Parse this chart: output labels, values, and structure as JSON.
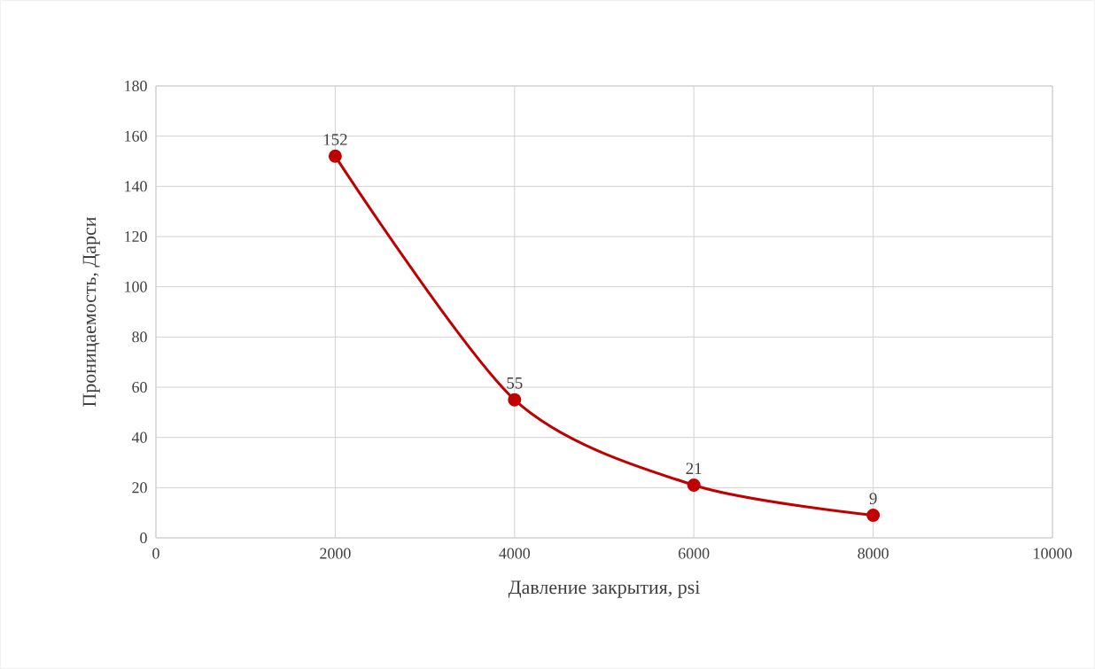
{
  "chart_data": {
    "type": "line",
    "xlabel": "Давление закрытия, psi",
    "ylabel": "Проницаемость, Дарси",
    "x": [
      2000,
      4000,
      6000,
      8000
    ],
    "series": [
      {
        "color": "#c00000",
        "values": [
          152,
          55,
          21,
          9
        ]
      }
    ],
    "xlim": [
      0,
      10000
    ],
    "xticks": [
      0,
      2000,
      4000,
      6000,
      8000,
      10000
    ],
    "ylim": [
      0,
      180
    ],
    "yticks": [
      0,
      20,
      40,
      60,
      80,
      100,
      120,
      140,
      160,
      180
    ],
    "grid": true,
    "marker": "circle",
    "line_style": "solid",
    "data_labels": true
  }
}
